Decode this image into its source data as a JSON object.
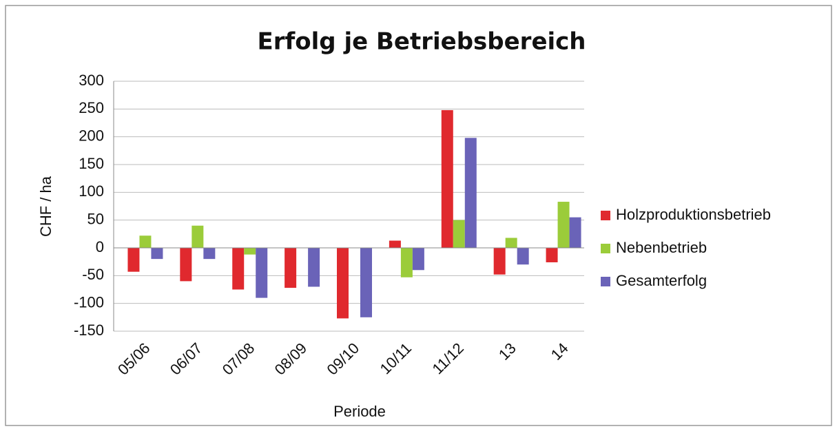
{
  "chart_data": {
    "type": "bar",
    "title": "Erfolg je Betriebsbereich",
    "y_label": "CHF / ha",
    "x_label": "Periode",
    "categories": [
      "05/06",
      "06/07",
      "07/08",
      "08/09",
      "09/10",
      "10/11",
      "11/12",
      "13",
      "14"
    ],
    "series": [
      {
        "name": "Holzproduktionsbetrieb",
        "color": "#e0292e",
        "values": [
          -43,
          -60,
          -75,
          -72,
          -127,
          13,
          248,
          -48,
          -26
        ]
      },
      {
        "name": "Nebenbetrieb",
        "color": "#9bcc3a",
        "values": [
          22,
          40,
          -12,
          0,
          0,
          -53,
          50,
          18,
          83
        ]
      },
      {
        "name": "Gesamterfolg",
        "color": "#6a63b8",
        "values": [
          -20,
          -20,
          -90,
          -70,
          -125,
          -40,
          198,
          -30,
          55
        ]
      }
    ],
    "ylim": [
      -150,
      300
    ],
    "yticks": [
      -150,
      -100,
      -50,
      0,
      50,
      100,
      150,
      200,
      250,
      300
    ],
    "grid": true,
    "legend": "right"
  }
}
